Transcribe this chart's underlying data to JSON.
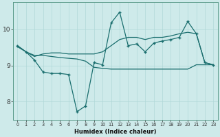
{
  "background_color": "#ceeaea",
  "grid_color": "#b0d8d8",
  "line_color": "#1a6e6e",
  "xlabel": "Humidex (Indice chaleur)",
  "xlim": [
    -0.5,
    23.5
  ],
  "ylim": [
    7.5,
    10.75
  ],
  "yticks": [
    8,
    9,
    10
  ],
  "xticks": [
    0,
    1,
    2,
    3,
    4,
    5,
    6,
    7,
    8,
    9,
    10,
    11,
    12,
    13,
    14,
    15,
    16,
    17,
    18,
    19,
    20,
    21,
    22,
    23
  ],
  "line1_x": [
    0,
    1,
    2,
    3,
    4,
    5,
    6,
    7,
    8,
    9,
    10,
    11,
    12,
    13,
    14,
    15,
    16,
    17,
    18,
    19,
    20,
    21,
    22,
    23
  ],
  "line1_y": [
    9.55,
    9.38,
    9.15,
    8.82,
    8.78,
    8.78,
    8.75,
    7.72,
    7.88,
    9.08,
    9.02,
    10.18,
    10.48,
    9.55,
    9.6,
    9.38,
    9.62,
    9.68,
    9.72,
    9.78,
    10.22,
    9.88,
    9.08,
    9.02
  ],
  "line2_x": [
    0,
    1,
    2,
    3,
    4,
    5,
    6,
    7,
    8,
    9,
    10,
    11,
    12,
    13,
    14,
    15,
    16,
    17,
    18,
    19,
    20,
    21,
    22,
    23
  ],
  "line2_y": [
    9.55,
    9.38,
    9.25,
    9.32,
    9.35,
    9.35,
    9.32,
    9.32,
    9.32,
    9.32,
    9.38,
    9.55,
    9.72,
    9.78,
    9.78,
    9.72,
    9.78,
    9.78,
    9.82,
    9.88,
    9.92,
    9.88,
    9.08,
    9.02
  ],
  "line3_x": [
    0,
    1,
    2,
    3,
    4,
    5,
    6,
    7,
    8,
    9,
    10,
    11,
    12,
    13,
    14,
    15,
    16,
    17,
    18,
    19,
    20,
    21,
    22,
    23
  ],
  "line3_y": [
    9.52,
    9.38,
    9.28,
    9.28,
    9.25,
    9.22,
    9.2,
    9.18,
    9.12,
    8.95,
    8.92,
    8.9,
    8.9,
    8.9,
    8.9,
    8.9,
    8.9,
    8.9,
    8.9,
    8.9,
    8.9,
    9.02,
    9.02,
    9.02
  ]
}
